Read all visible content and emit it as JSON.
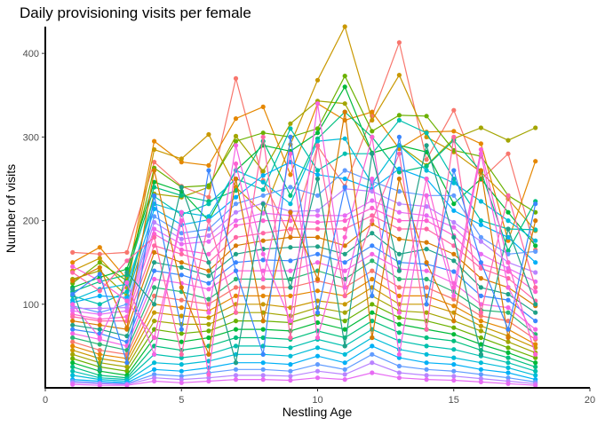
{
  "chart_data": {
    "type": "line",
    "title": "Daily provisioning visits per female",
    "xlabel": "Nestling Age",
    "ylabel": "Number of visits",
    "xlim": [
      0,
      20
    ],
    "ylim": [
      0,
      432
    ],
    "x_ticks": [
      0,
      5,
      10,
      15,
      20
    ],
    "y_ticks": [
      100,
      200,
      300,
      400
    ],
    "grid": false,
    "legend": "none",
    "markers": true,
    "palette": [
      "#F8766D",
      "#E58700",
      "#C99800",
      "#A3A500",
      "#6BB100",
      "#00BA38",
      "#00BF7D",
      "#00C0AF",
      "#00BCD8",
      "#00B0F6",
      "#619CFF",
      "#B983FF",
      "#E76BF3",
      "#FD61D1",
      "#FF67A4",
      "#D77A00",
      "#1FA187",
      "#3A86FF",
      "#F564E3",
      "#2BB673"
    ],
    "ages": [
      1,
      2,
      3,
      4,
      5,
      6,
      7,
      8,
      9,
      10,
      11,
      12,
      13,
      14,
      15,
      16,
      17,
      18
    ],
    "series": [
      {
        "values": [
          162,
          160,
          162,
          270,
          241,
          228,
          370,
          248,
          180,
          289,
          241,
          325,
          413,
          273,
          332,
          249,
          280,
          165
        ]
      },
      {
        "values": [
          150,
          168,
          130,
          295,
          270,
          266,
          322,
          336,
          255,
          340,
          320,
          330,
          286,
          306,
          307,
          292,
          176,
          271
        ]
      },
      {
        "values": [
          140,
          155,
          120,
          285,
          274,
          303,
          240,
          209,
          291,
          368,
          432,
          320,
          374,
          300,
          282,
          258,
          226,
          188
        ]
      },
      {
        "values": [
          130,
          140,
          110,
          232,
          228,
          240,
          301,
          259,
          316,
          343,
          340,
          281,
          290,
          266,
          298,
          311,
          296,
          311
        ]
      },
      {
        "values": [
          125,
          150,
          128,
          263,
          240,
          242,
          295,
          305,
          300,
          310,
          373,
          307,
          326,
          325,
          284,
          277,
          230,
          210
        ]
      },
      {
        "values": [
          120,
          132,
          142,
          246,
          235,
          200,
          260,
          290,
          283,
          305,
          360,
          281,
          290,
          282,
          220,
          250,
          210,
          170
        ]
      },
      {
        "values": [
          115,
          127,
          135,
          240,
          230,
          223,
          236,
          295,
          230,
          298,
          330,
          300,
          258,
          265,
          296,
          259,
          164,
          223
        ]
      },
      {
        "values": [
          110,
          100,
          115,
          229,
          207,
          220,
          250,
          237,
          310,
          260,
          280,
          280,
          320,
          305,
          250,
          200,
          190,
          189
        ]
      },
      {
        "values": [
          105,
          118,
          124,
          220,
          210,
          205,
          260,
          246,
          220,
          295,
          298,
          244,
          290,
          260,
          245,
          223,
          200,
          176
        ]
      },
      {
        "values": [
          102,
          110,
          108,
          214,
          195,
          201,
          228,
          254,
          270,
          255,
          250,
          238,
          262,
          250,
          212,
          195,
          180,
          150
        ]
      },
      {
        "values": [
          98,
          90,
          100,
          205,
          185,
          190,
          220,
          230,
          240,
          230,
          260,
          247,
          235,
          230,
          230,
          180,
          160,
          163
        ]
      },
      {
        "values": [
          95,
          95,
          96,
          198,
          178,
          182,
          210,
          221,
          211,
          212,
          238,
          235,
          220,
          217,
          198,
          175,
          150,
          138
        ]
      },
      {
        "values": [
          92,
          88,
          92,
          190,
          172,
          175,
          200,
          209,
          206,
          206,
          206,
          224,
          210,
          206,
          192,
          160,
          143,
          127
        ]
      },
      {
        "values": [
          88,
          82,
          85,
          184,
          165,
          160,
          194,
          200,
          200,
          198,
          200,
          215,
          200,
          200,
          182,
          148,
          139,
          115
        ]
      },
      {
        "values": [
          85,
          80,
          80,
          170,
          160,
          150,
          180,
          185,
          190,
          190,
          190,
          206,
          190,
          190,
          170,
          143,
          131,
          104
        ]
      },
      {
        "values": [
          80,
          75,
          70,
          162,
          150,
          140,
          170,
          176,
          180,
          180,
          170,
          196,
          178,
          174,
          160,
          131,
          120,
          98
        ]
      },
      {
        "values": [
          75,
          70,
          62,
          150,
          144,
          134,
          160,
          166,
          168,
          169,
          160,
          185,
          160,
          166,
          152,
          120,
          112,
          90
        ]
      },
      {
        "values": [
          70,
          65,
          55,
          140,
          135,
          125,
          150,
          153,
          152,
          160,
          150,
          170,
          150,
          148,
          139,
          110,
          105,
          80
        ]
      },
      {
        "values": [
          65,
          58,
          50,
          130,
          125,
          118,
          140,
          140,
          140,
          150,
          140,
          160,
          142,
          140,
          125,
          100,
          96,
          70
        ]
      },
      {
        "values": [
          60,
          52,
          45,
          120,
          115,
          106,
          130,
          130,
          130,
          140,
          130,
          152,
          130,
          130,
          115,
          93,
          90,
          64
        ]
      },
      {
        "values": [
          55,
          45,
          40,
          110,
          105,
          100,
          120,
          120,
          120,
          128,
          120,
          140,
          120,
          120,
          106,
          86,
          80,
          58
        ]
      },
      {
        "values": [
          50,
          40,
          35,
          100,
          96,
          92,
          110,
          110,
          110,
          116,
          110,
          130,
          110,
          110,
          98,
          80,
          70,
          52
        ]
      },
      {
        "values": [
          45,
          35,
          30,
          90,
          86,
          84,
          100,
          100,
          96,
          104,
          100,
          120,
          100,
          100,
          90,
          74,
          62,
          48
        ]
      },
      {
        "values": [
          40,
          30,
          25,
          80,
          76,
          76,
          90,
          90,
          86,
          96,
          90,
          110,
          92,
          90,
          80,
          68,
          55,
          42
        ]
      },
      {
        "values": [
          35,
          25,
          20,
          70,
          65,
          68,
          80,
          80,
          78,
          88,
          80,
          100,
          84,
          80,
          72,
          60,
          48,
          36
        ]
      },
      {
        "values": [
          30,
          20,
          15,
          60,
          55,
          60,
          70,
          70,
          68,
          78,
          70,
          90,
          76,
          70,
          64,
          52,
          42,
          30
        ]
      },
      {
        "values": [
          25,
          15,
          12,
          50,
          45,
          50,
          60,
          60,
          58,
          68,
          60,
          80,
          66,
          60,
          56,
          45,
          36,
          25
        ]
      },
      {
        "values": [
          20,
          12,
          10,
          40,
          36,
          40,
          50,
          50,
          48,
          58,
          50,
          70,
          56,
          50,
          46,
          38,
          30,
          20
        ]
      },
      {
        "values": [
          15,
          10,
          8,
          30,
          28,
          32,
          40,
          40,
          38,
          48,
          40,
          60,
          46,
          40,
          36,
          30,
          24,
          15
        ]
      },
      {
        "values": [
          10,
          8,
          6,
          22,
          20,
          24,
          30,
          30,
          28,
          38,
          30,
          50,
          36,
          30,
          28,
          22,
          18,
          10
        ]
      },
      {
        "values": [
          8,
          6,
          5,
          16,
          14,
          18,
          22,
          22,
          20,
          28,
          22,
          40,
          26,
          22,
          20,
          16,
          12,
          7
        ]
      },
      {
        "values": [
          6,
          5,
          4,
          12,
          10,
          12,
          15,
          15,
          14,
          20,
          16,
          30,
          18,
          15,
          14,
          11,
          8,
          5
        ]
      },
      {
        "values": [
          4,
          3,
          3,
          8,
          6,
          8,
          10,
          10,
          9,
          12,
          10,
          18,
          12,
          10,
          9,
          7,
          5,
          3
        ]
      },
      {
        "values": [
          145,
          128,
          104,
          60,
          200,
          16,
          268,
          130,
          280,
          60,
          180,
          300,
          90,
          250,
          120,
          285,
          150,
          40
        ]
      },
      {
        "values": [
          138,
          116,
          152,
          180,
          40,
          200,
          90,
          300,
          60,
          290,
          110,
          200,
          280,
          70,
          300,
          90,
          230,
          120
        ]
      },
      {
        "values": [
          128,
          144,
          72,
          260,
          120,
          40,
          250,
          80,
          210,
          130,
          330,
          60,
          250,
          150,
          80,
          260,
          60,
          200
        ]
      },
      {
        "values": [
          118,
          22,
          138,
          100,
          240,
          150,
          30,
          220,
          120,
          250,
          50,
          280,
          140,
          290,
          180,
          40,
          190,
          100
        ]
      },
      {
        "values": [
          112,
          136,
          30,
          230,
          70,
          260,
          140,
          40,
          300,
          90,
          240,
          110,
          300,
          100,
          260,
          150,
          70,
          220
        ]
      },
      {
        "values": [
          100,
          60,
          126,
          40,
          210,
          90,
          290,
          160,
          80,
          340,
          120,
          250,
          40,
          230,
          110,
          280,
          120,
          60
        ]
      }
    ]
  }
}
